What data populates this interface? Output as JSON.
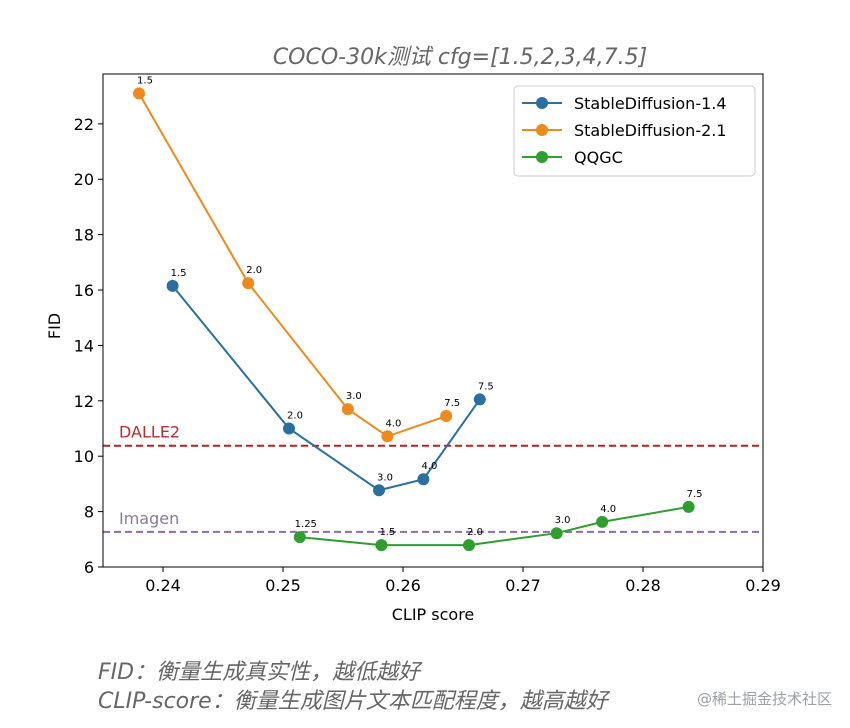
{
  "chart_data": {
    "type": "line",
    "title": "COCO-30k测试  cfg=[1.5,2,3,4,7.5]",
    "xlabel": "CLIP score",
    "ylabel": "FID",
    "xlim": [
      0.235,
      0.29
    ],
    "ylim": [
      6,
      23.8
    ],
    "xticks": [
      0.24,
      0.25,
      0.26,
      0.27,
      0.28,
      0.29
    ],
    "xtick_labels": [
      "0.24",
      "0.25",
      "0.26",
      "0.27",
      "0.28",
      "0.29"
    ],
    "yticks": [
      6,
      8,
      10,
      12,
      14,
      16,
      18,
      20,
      22
    ],
    "ytick_labels": [
      "6",
      "8",
      "10",
      "12",
      "14",
      "16",
      "18",
      "20",
      "22"
    ],
    "grid": false,
    "legend_position": "top-right",
    "series": [
      {
        "name": "StableDiffusion-1.4",
        "color": "#2a6f9e",
        "points": [
          {
            "x": 0.2408,
            "y": 16.15,
            "label": "1.5"
          },
          {
            "x": 0.2505,
            "y": 11.0,
            "label": "2.0"
          },
          {
            "x": 0.258,
            "y": 8.77,
            "label": "3.0"
          },
          {
            "x": 0.2617,
            "y": 9.17,
            "label": "4.0"
          },
          {
            "x": 0.2664,
            "y": 12.05,
            "label": "7.5"
          }
        ]
      },
      {
        "name": "StableDiffusion-2.1",
        "color": "#ee8a1d",
        "points": [
          {
            "x": 0.238,
            "y": 23.1,
            "label": "1.5"
          },
          {
            "x": 0.2471,
            "y": 16.25,
            "label": "2.0"
          },
          {
            "x": 0.2554,
            "y": 11.7,
            "label": "3.0"
          },
          {
            "x": 0.2587,
            "y": 10.72,
            "label": "4.0"
          },
          {
            "x": 0.2636,
            "y": 11.45,
            "label": "7.5"
          }
        ]
      },
      {
        "name": "QQGC",
        "color": "#2f9e2f",
        "points": [
          {
            "x": 0.2514,
            "y": 7.08,
            "label": "1.25"
          },
          {
            "x": 0.2582,
            "y": 6.79,
            "label": "1.5"
          },
          {
            "x": 0.2655,
            "y": 6.79,
            "label": "2.0"
          },
          {
            "x": 0.2728,
            "y": 7.22,
            "label": "3.0"
          },
          {
            "x": 0.2766,
            "y": 7.63,
            "label": "4.0"
          },
          {
            "x": 0.2838,
            "y": 8.17,
            "label": "7.5"
          }
        ]
      }
    ],
    "reference_lines": [
      {
        "label": "DALLE2",
        "y": 10.38,
        "color": "#b22222",
        "text_color": "#b03030"
      },
      {
        "label": "Imagen",
        "y": 7.27,
        "color": "#8e6bb0",
        "text_color": "#8a7a9a"
      }
    ]
  },
  "captions": {
    "line1": "FID：衡量生成真实性，越低越好",
    "line2": "CLIP-score：衡量生成图片文本匹配程度，越高越好"
  },
  "watermark": "@稀土掘金技术社区"
}
